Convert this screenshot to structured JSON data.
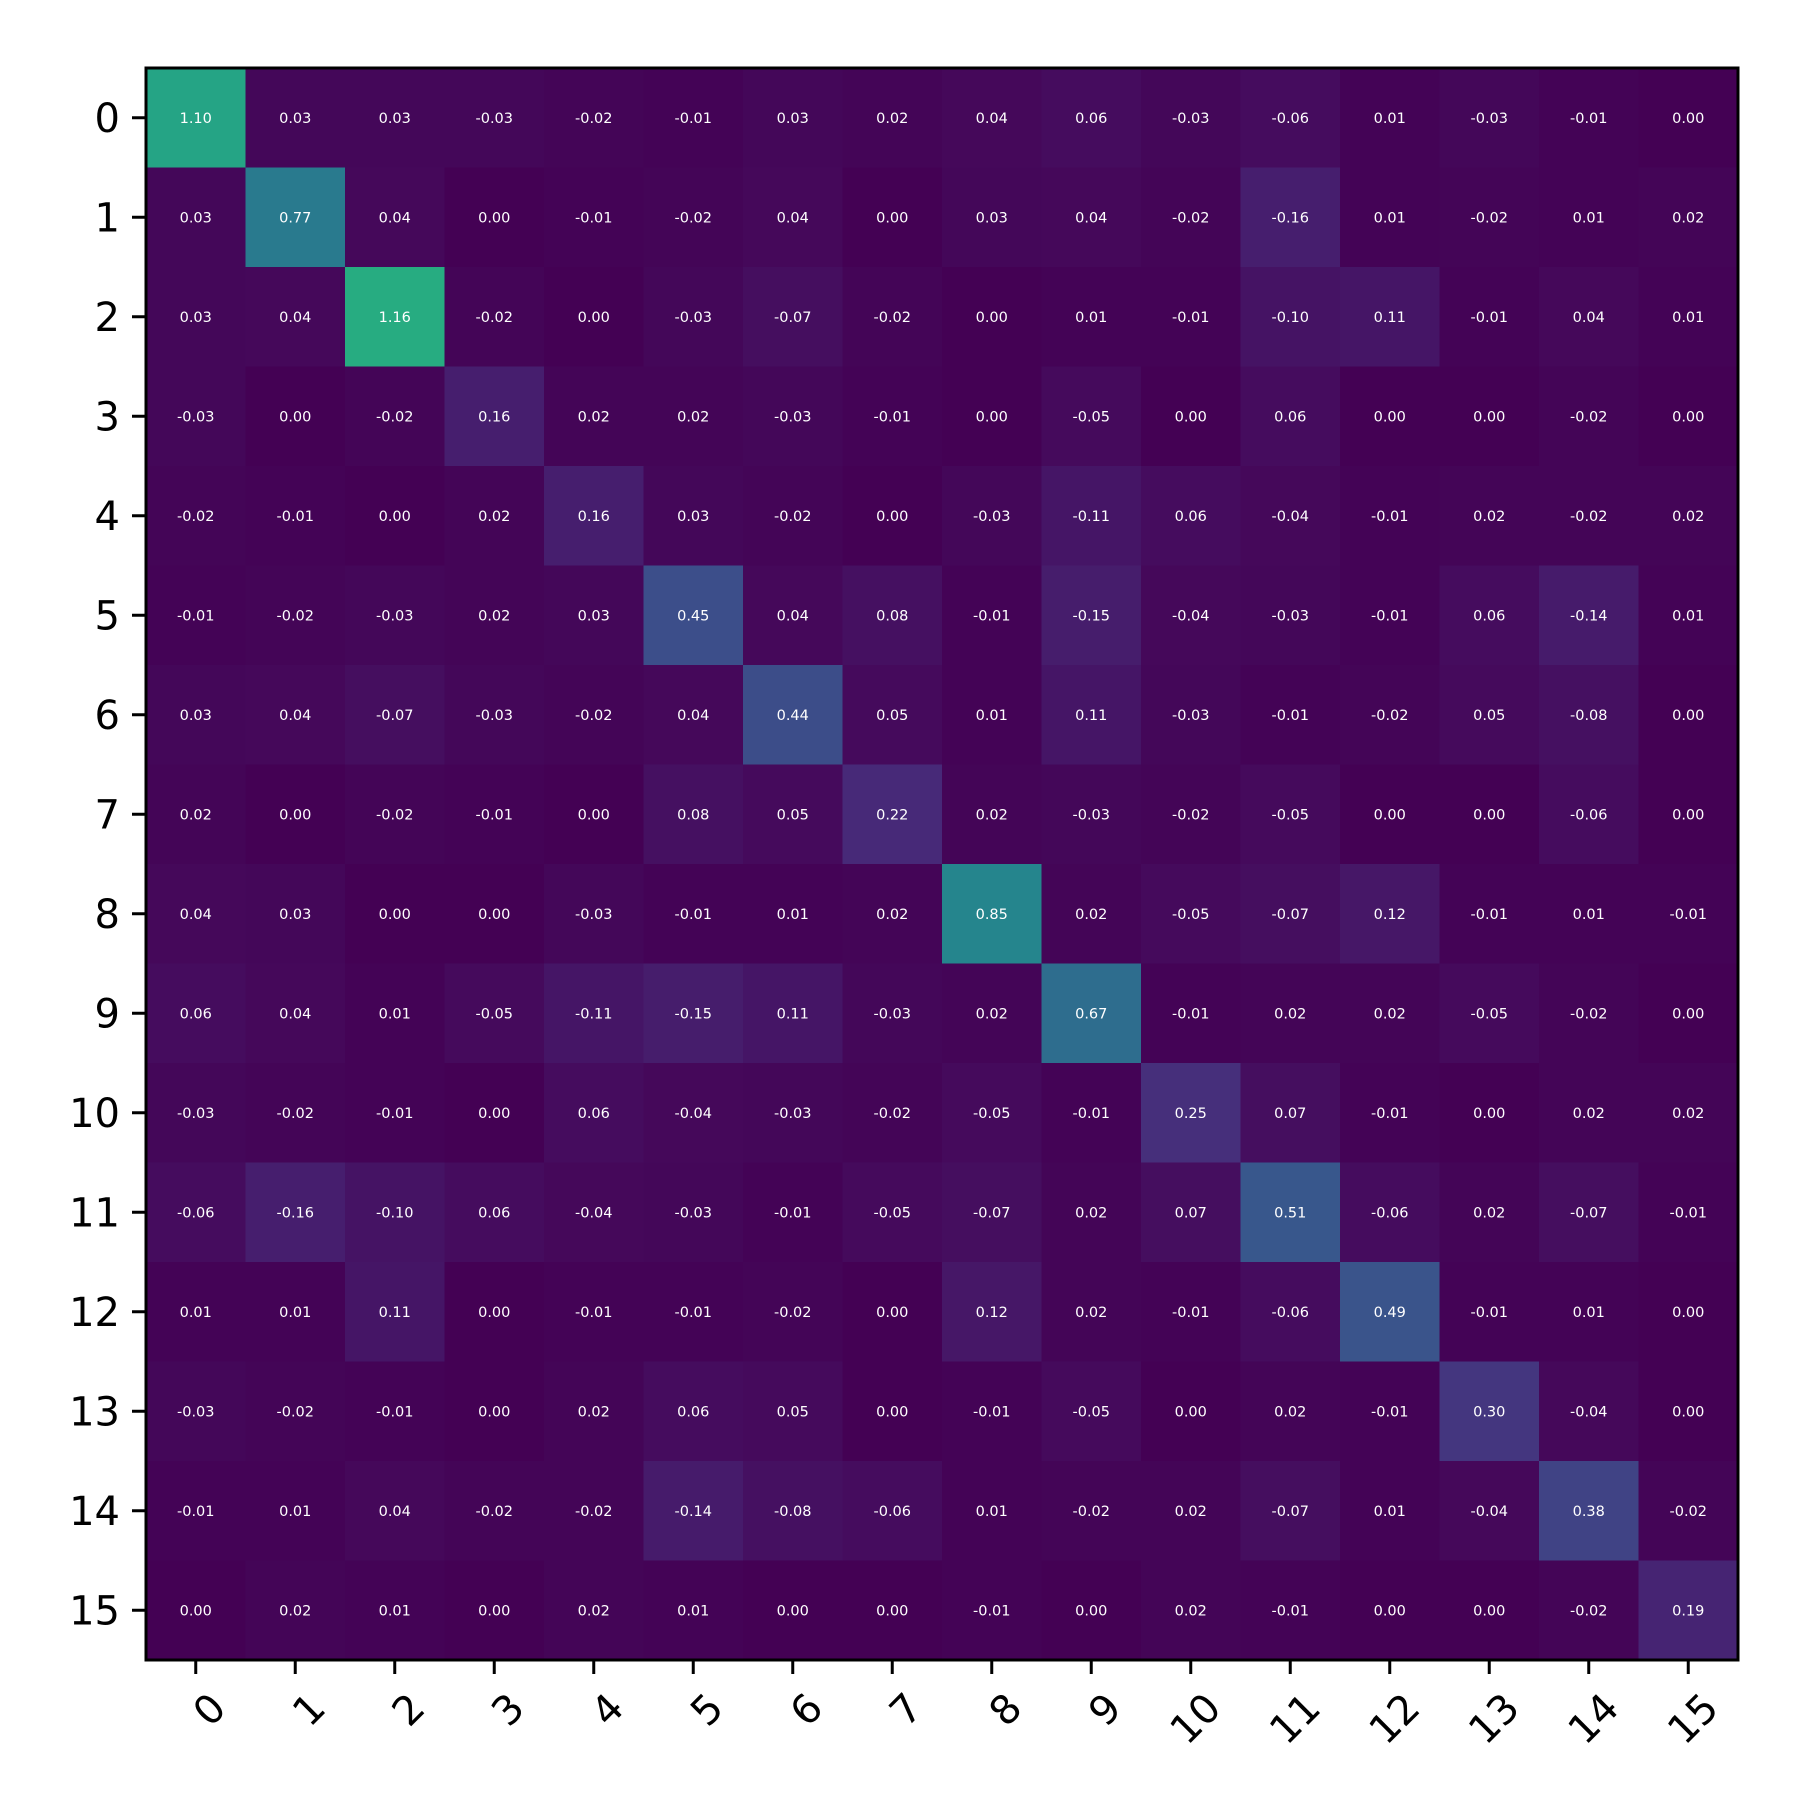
{
  "chart_data": {
    "type": "heatmap",
    "title": "",
    "xlabel": "",
    "ylabel": "",
    "x_ticks": [
      "0",
      "1",
      "2",
      "3",
      "4",
      "5",
      "6",
      "7",
      "8",
      "9",
      "10",
      "11",
      "12",
      "13",
      "14",
      "15"
    ],
    "y_ticks": [
      "0",
      "1",
      "2",
      "3",
      "4",
      "5",
      "6",
      "7",
      "8",
      "9",
      "10",
      "11",
      "12",
      "13",
      "14",
      "15"
    ],
    "colormap": "viridis",
    "vmin": -0.16,
    "vmax": 1.16,
    "grid": false,
    "values": [
      [
        1.1,
        0.03,
        0.03,
        -0.03,
        -0.02,
        -0.01,
        0.03,
        0.02,
        0.04,
        0.06,
        -0.03,
        -0.06,
        0.01,
        -0.03,
        -0.01,
        0.0
      ],
      [
        0.03,
        0.77,
        0.04,
        0.0,
        -0.01,
        -0.02,
        0.04,
        0.0,
        0.03,
        0.04,
        -0.02,
        -0.16,
        0.01,
        -0.02,
        0.01,
        0.02
      ],
      [
        0.03,
        0.04,
        1.16,
        -0.02,
        0.0,
        -0.03,
        -0.07,
        -0.02,
        -0.0,
        0.01,
        -0.01,
        -0.1,
        0.11,
        -0.01,
        0.04,
        0.01
      ],
      [
        -0.03,
        0.0,
        -0.02,
        0.16,
        0.02,
        0.02,
        -0.03,
        -0.01,
        -0.0,
        -0.05,
        0.0,
        0.06,
        -0.0,
        0.0,
        -0.02,
        0.0
      ],
      [
        -0.02,
        -0.01,
        0.0,
        0.02,
        0.16,
        0.03,
        -0.02,
        -0.0,
        -0.03,
        -0.11,
        0.06,
        -0.04,
        -0.01,
        0.02,
        -0.02,
        0.02
      ],
      [
        -0.01,
        -0.02,
        -0.03,
        0.02,
        0.03,
        0.45,
        0.04,
        0.08,
        -0.01,
        -0.15,
        -0.04,
        -0.03,
        -0.01,
        0.06,
        -0.14,
        0.01
      ],
      [
        0.03,
        0.04,
        -0.07,
        -0.03,
        -0.02,
        0.04,
        0.44,
        0.05,
        0.01,
        0.11,
        -0.03,
        -0.01,
        -0.02,
        0.05,
        -0.08,
        -0.0
      ],
      [
        0.02,
        0.0,
        -0.02,
        -0.01,
        -0.0,
        0.08,
        0.05,
        0.22,
        0.02,
        -0.03,
        -0.02,
        -0.05,
        0.0,
        -0.0,
        -0.06,
        0.0
      ],
      [
        0.04,
        0.03,
        -0.0,
        -0.0,
        -0.03,
        -0.01,
        0.01,
        0.02,
        0.85,
        0.02,
        -0.05,
        -0.07,
        0.12,
        -0.01,
        0.01,
        -0.01
      ],
      [
        0.06,
        0.04,
        0.01,
        -0.05,
        -0.11,
        -0.15,
        0.11,
        -0.03,
        0.02,
        0.67,
        -0.01,
        0.02,
        0.02,
        -0.05,
        -0.02,
        -0.0
      ],
      [
        -0.03,
        -0.02,
        -0.01,
        0.0,
        0.06,
        -0.04,
        -0.03,
        -0.02,
        -0.05,
        -0.01,
        0.25,
        0.07,
        -0.01,
        -0.0,
        0.02,
        0.02
      ],
      [
        -0.06,
        -0.16,
        -0.1,
        0.06,
        -0.04,
        -0.03,
        -0.01,
        -0.05,
        -0.07,
        0.02,
        0.07,
        0.51,
        -0.06,
        0.02,
        -0.07,
        -0.01
      ],
      [
        0.01,
        0.01,
        0.11,
        -0.0,
        -0.01,
        -0.01,
        -0.02,
        0.0,
        0.12,
        0.02,
        -0.01,
        -0.06,
        0.49,
        -0.01,
        0.01,
        -0.0
      ],
      [
        -0.03,
        -0.02,
        -0.01,
        0.0,
        0.02,
        0.06,
        0.05,
        -0.0,
        -0.01,
        -0.05,
        -0.0,
        0.02,
        -0.01,
        0.3,
        -0.04,
        -0.0
      ],
      [
        -0.01,
        0.01,
        0.04,
        -0.02,
        -0.02,
        -0.14,
        -0.08,
        -0.06,
        0.01,
        -0.02,
        0.02,
        -0.07,
        0.01,
        -0.04,
        0.38,
        -0.02
      ],
      [
        0.0,
        0.02,
        0.01,
        0.0,
        0.02,
        0.01,
        -0.0,
        0.0,
        -0.01,
        -0.0,
        0.02,
        -0.01,
        -0.0,
        -0.0,
        -0.02,
        0.19
      ]
    ]
  }
}
